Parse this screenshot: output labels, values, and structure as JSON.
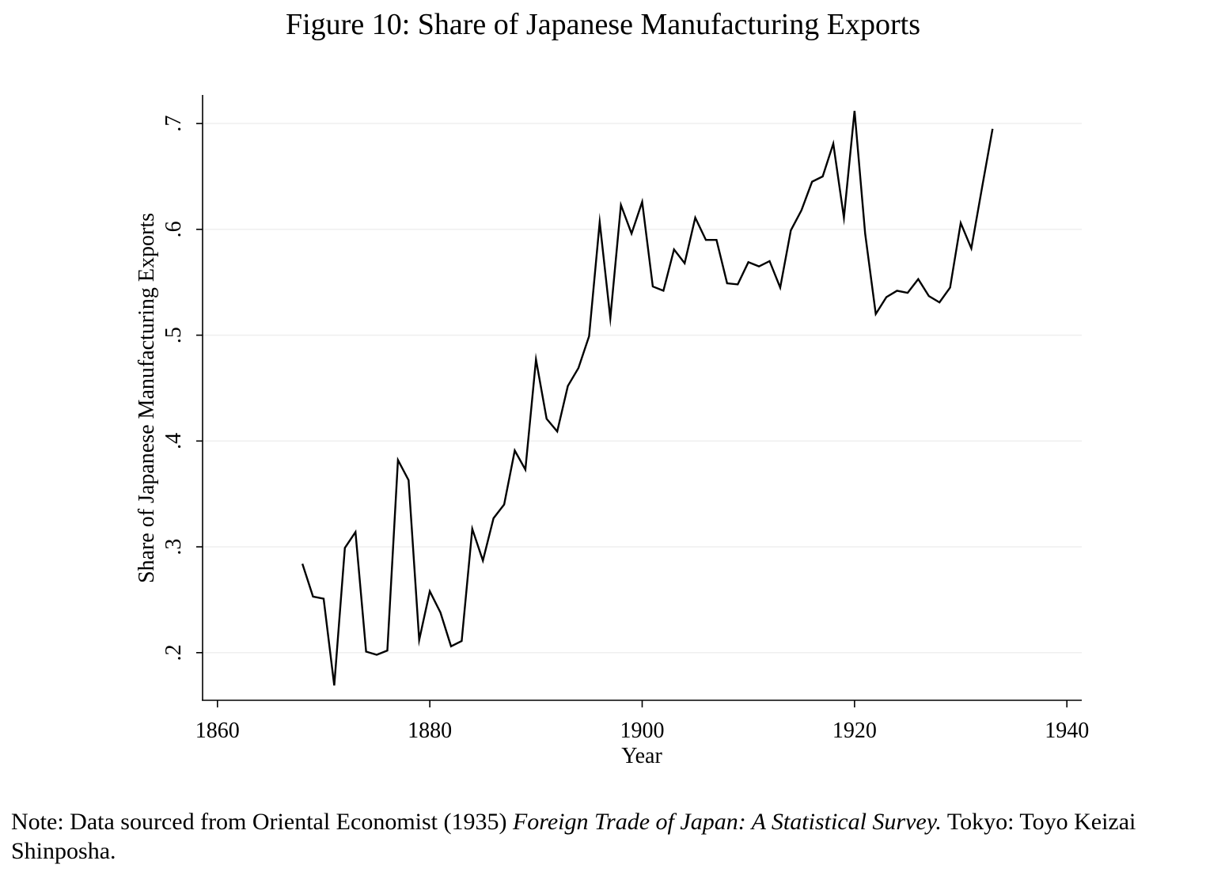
{
  "title": "Figure 10: Share of Japanese Manufacturing Exports",
  "note": {
    "prefix": "Note: Data sourced from Oriental Economist (1935) ",
    "source_title": "Foreign Trade of Japan: A Statistical Survey.",
    "suffix": " Tokyo: Toyo Keizai Shinposha."
  },
  "chart_data": {
    "type": "line",
    "xlabel": "Year",
    "ylabel": "Share of Japanese Manufacturing Exports",
    "xlim": [
      1858.6,
      1941.4
    ],
    "ylim": [
      0.155,
      0.727
    ],
    "xticks": [
      {
        "value": 1860,
        "label": "1860"
      },
      {
        "value": 1880,
        "label": "1880"
      },
      {
        "value": 1900,
        "label": "1900"
      },
      {
        "value": 1920,
        "label": "1920"
      },
      {
        "value": 1940,
        "label": "1940"
      }
    ],
    "yticks": [
      {
        "value": 0.2,
        "label": ".2"
      },
      {
        "value": 0.3,
        "label": ".3"
      },
      {
        "value": 0.4,
        "label": ".4"
      },
      {
        "value": 0.5,
        "label": ".5"
      },
      {
        "value": 0.6,
        "label": ".6"
      },
      {
        "value": 0.7,
        "label": ".7"
      }
    ],
    "grid": "horizontal",
    "line_color": "#000000",
    "grid_color": "#eeeeee",
    "series": [
      {
        "x": [
          1868,
          1869,
          1870,
          1871,
          1872,
          1873,
          1874,
          1875,
          1876,
          1877,
          1878,
          1879,
          1880,
          1881,
          1882,
          1883,
          1884,
          1885,
          1886,
          1887,
          1888,
          1889,
          1890,
          1891,
          1892,
          1893,
          1894,
          1895,
          1896,
          1897,
          1898,
          1899,
          1900,
          1901,
          1902,
          1903,
          1904,
          1905,
          1906,
          1907,
          1908,
          1909,
          1910,
          1911,
          1912,
          1913,
          1914,
          1915,
          1916,
          1917,
          1918,
          1919,
          1920,
          1921,
          1922,
          1923,
          1924,
          1925,
          1926,
          1927,
          1928,
          1929,
          1930,
          1931,
          1932,
          1933
        ],
        "y": [
          0.284,
          0.253,
          0.251,
          0.169,
          0.299,
          0.314,
          0.201,
          0.198,
          0.202,
          0.382,
          0.363,
          0.212,
          0.258,
          0.238,
          0.206,
          0.211,
          0.317,
          0.287,
          0.327,
          0.34,
          0.391,
          0.373,
          0.477,
          0.421,
          0.409,
          0.452,
          0.469,
          0.499,
          0.607,
          0.516,
          0.623,
          0.596,
          0.626,
          0.546,
          0.542,
          0.581,
          0.568,
          0.611,
          0.59,
          0.59,
          0.549,
          0.548,
          0.569,
          0.565,
          0.57,
          0.545,
          0.599,
          0.618,
          0.645,
          0.65,
          0.681,
          0.611,
          0.712,
          0.596,
          0.52,
          0.536,
          0.542,
          0.54,
          0.553,
          0.537,
          0.531,
          0.545,
          0.606,
          0.582,
          0.639,
          0.695
        ]
      }
    ]
  }
}
